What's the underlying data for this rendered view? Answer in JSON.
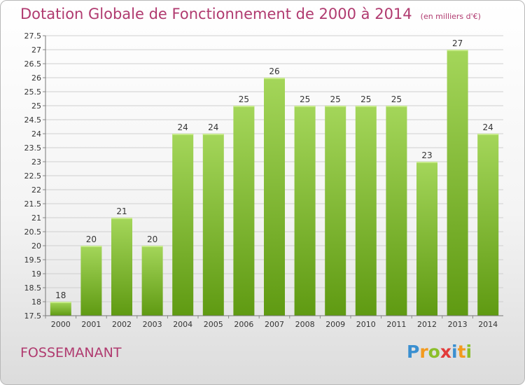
{
  "header": {
    "title": "Dotation Globale de Fonctionnement de 2000 à 2014",
    "unit": "(en milliers d'€)"
  },
  "footer": {
    "commune": "FOSSEMANANT",
    "logo": "Proxiti"
  },
  "colors": {
    "title": "#b03a6f",
    "bar_light": "#a4d65a",
    "bar_dark": "#5f9a12",
    "grid": "#cfcfcf",
    "axis_text": "#333333"
  },
  "chart_data": {
    "type": "bar",
    "categories": [
      "2000",
      "2001",
      "2002",
      "2003",
      "2004",
      "2005",
      "2006",
      "2007",
      "2008",
      "2009",
      "2010",
      "2011",
      "2012",
      "2013",
      "2014"
    ],
    "values": [
      18,
      20,
      21,
      20,
      24,
      24,
      25,
      26,
      25,
      25,
      25,
      25,
      23,
      27,
      24
    ],
    "data_labels": [
      "18",
      "20",
      "21",
      "20",
      "24",
      "24",
      "25",
      "26",
      "25",
      "25",
      "25",
      "25",
      "23",
      "27",
      "24"
    ],
    "title": "Dotation Globale de Fonctionnement de 2000 à 2014",
    "xlabel": "",
    "ylabel": "",
    "ylim": [
      17.5,
      27.5
    ],
    "yticks": [
      17.5,
      18,
      18.5,
      19,
      19.5,
      20,
      20.5,
      21,
      21.5,
      22,
      22.5,
      23,
      23.5,
      24,
      24.5,
      25,
      25.5,
      26,
      26.5,
      27,
      27.5
    ],
    "ytick_labels": [
      "17.5",
      "18",
      "18.5",
      "19",
      "19.5",
      "20",
      "20.5",
      "21",
      "21.5",
      "22",
      "22.5",
      "23",
      "23.5",
      "24",
      "24.5",
      "25",
      "25.5",
      "26",
      "26.5",
      "27",
      "27.5"
    ],
    "grid": true,
    "legend": "none"
  }
}
